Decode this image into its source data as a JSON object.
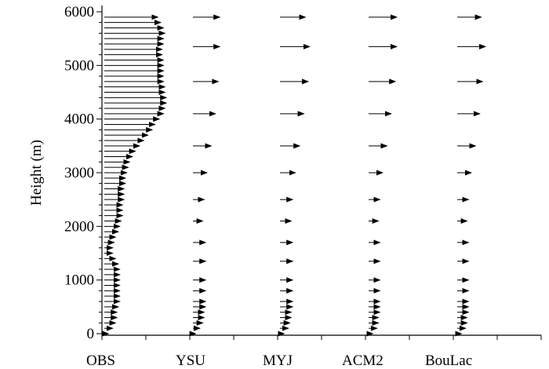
{
  "chart_data": {
    "type": "vector-profile",
    "ylabel": "Height  (m)",
    "yticks": [
      0,
      1000,
      2000,
      3000,
      4000,
      5000,
      6000
    ],
    "ylim": [
      0,
      6000
    ],
    "ytick_labels": [
      "0",
      "1000",
      "2000",
      "3000",
      "4000",
      "5000",
      "6000"
    ],
    "grid": false,
    "panels": [
      {
        "name": "OBS",
        "heights": [
          0,
          100,
          200,
          300,
          400,
          500,
          600,
          700,
          800,
          900,
          1000,
          1100,
          1200,
          1300,
          1400,
          1500,
          1600,
          1700,
          1800,
          1900,
          2000,
          2100,
          2200,
          2300,
          2400,
          2500,
          2600,
          2700,
          2800,
          2900,
          3000,
          3100,
          3200,
          3300,
          3400,
          3500,
          3600,
          3700,
          3800,
          3900,
          4000,
          4100,
          4200,
          4300,
          4400,
          4500,
          4600,
          4700,
          4800,
          4900,
          5000,
          5100,
          5200,
          5300,
          5400,
          5500,
          5600,
          5700,
          5800,
          5900
        ],
        "u": [
          3,
          6,
          8,
          9,
          9,
          10,
          11,
          11,
          11,
          11,
          11,
          11,
          11,
          10,
          8,
          6,
          6,
          7,
          8,
          10,
          11,
          12,
          13,
          13,
          13,
          14,
          14,
          14,
          15,
          15,
          16,
          17,
          18,
          20,
          22,
          25,
          28,
          31,
          34,
          36,
          39,
          42,
          43,
          44,
          44,
          43,
          43,
          42,
          42,
          42,
          42,
          42,
          41,
          41,
          42,
          42,
          43,
          42,
          40,
          38
        ],
        "v": [
          0,
          0,
          0,
          0,
          0,
          0,
          0,
          0,
          0,
          0,
          0,
          0,
          0,
          0,
          0,
          0,
          0,
          0,
          0,
          0,
          0,
          0,
          0,
          0,
          0,
          0,
          0,
          0,
          0,
          0,
          0,
          0,
          0,
          0,
          0,
          0,
          0,
          0,
          0,
          0,
          0,
          0,
          0,
          0,
          0,
          0,
          0,
          0,
          0,
          0,
          0,
          0,
          0,
          0,
          0,
          0,
          0,
          0,
          0,
          0
        ]
      },
      {
        "name": "YSU",
        "heights": [
          0,
          100,
          200,
          300,
          400,
          500,
          600,
          800,
          1000,
          1350,
          1700,
          2100,
          2500,
          3000,
          3500,
          4100,
          4700,
          5350,
          5900
        ],
        "u": [
          2,
          5,
          7,
          8,
          8,
          9,
          9,
          9,
          9,
          9,
          9,
          7,
          8,
          10,
          13,
          16,
          18,
          19,
          19
        ],
        "v": [
          0,
          0,
          0,
          0,
          0,
          0,
          0,
          0,
          0,
          0,
          0,
          0,
          0,
          0,
          0,
          0,
          0,
          0,
          0
        ]
      },
      {
        "name": "MYJ",
        "heights": [
          0,
          100,
          200,
          300,
          400,
          500,
          600,
          800,
          1000,
          1350,
          1700,
          2100,
          2500,
          3000,
          3500,
          4100,
          4700,
          5350,
          5900
        ],
        "u": [
          3,
          6,
          7,
          8,
          8,
          9,
          9,
          9,
          9,
          9,
          9,
          8,
          9,
          11,
          14,
          17,
          20,
          21,
          18
        ],
        "v": [
          0,
          0,
          0,
          0,
          0,
          0,
          0,
          0,
          0,
          0,
          0,
          0,
          0,
          0,
          0,
          0,
          0,
          0,
          0
        ]
      },
      {
        "name": "ACM2",
        "heights": [
          0,
          100,
          200,
          300,
          400,
          500,
          600,
          800,
          1000,
          1350,
          1700,
          2100,
          2500,
          3000,
          3500,
          4100,
          4700,
          5350,
          5900
        ],
        "u": [
          3,
          6,
          7,
          7,
          8,
          8,
          8,
          8,
          8,
          8,
          8,
          7,
          8,
          10,
          13,
          16,
          19,
          20,
          20
        ],
        "v": [
          0,
          0,
          0,
          0,
          0,
          0,
          0,
          0,
          0,
          0,
          0,
          0,
          0,
          0,
          0,
          0,
          0,
          0,
          0
        ]
      },
      {
        "name": "BouLac",
        "heights": [
          0,
          100,
          200,
          300,
          400,
          500,
          600,
          800,
          1000,
          1350,
          1700,
          2100,
          2500,
          3000,
          3500,
          4100,
          4700,
          5350,
          5900
        ],
        "u": [
          3,
          6,
          7,
          7,
          8,
          8,
          8,
          8,
          8,
          8,
          8,
          7,
          8,
          10,
          13,
          16,
          18,
          20,
          17
        ],
        "v": [
          0,
          0,
          0,
          0,
          0,
          0,
          0,
          0,
          0,
          0,
          0,
          0,
          0,
          0,
          0,
          0,
          0,
          0,
          0
        ]
      }
    ]
  }
}
